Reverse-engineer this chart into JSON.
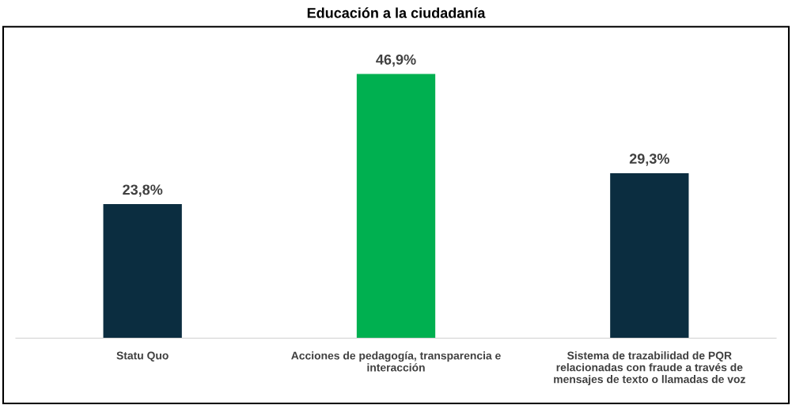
{
  "chart_data": {
    "type": "bar",
    "title": "Educación a la ciudadanía",
    "categories": [
      "Statu Quo",
      "Acciones de pedagogía, transparencia e\ninteracción",
      "Sistema de trazabilidad de PQR\nrelacionadas con fraude a través de\nmensajes de texto o llamadas de voz"
    ],
    "values": [
      23.8,
      46.9,
      29.3
    ],
    "colors": [
      "#0b2d40",
      "#00b050",
      "#0b2d40"
    ],
    "value_labels": [
      "23,8%",
      "46,9%",
      "29,3%"
    ],
    "grid": false,
    "legend": false
  }
}
